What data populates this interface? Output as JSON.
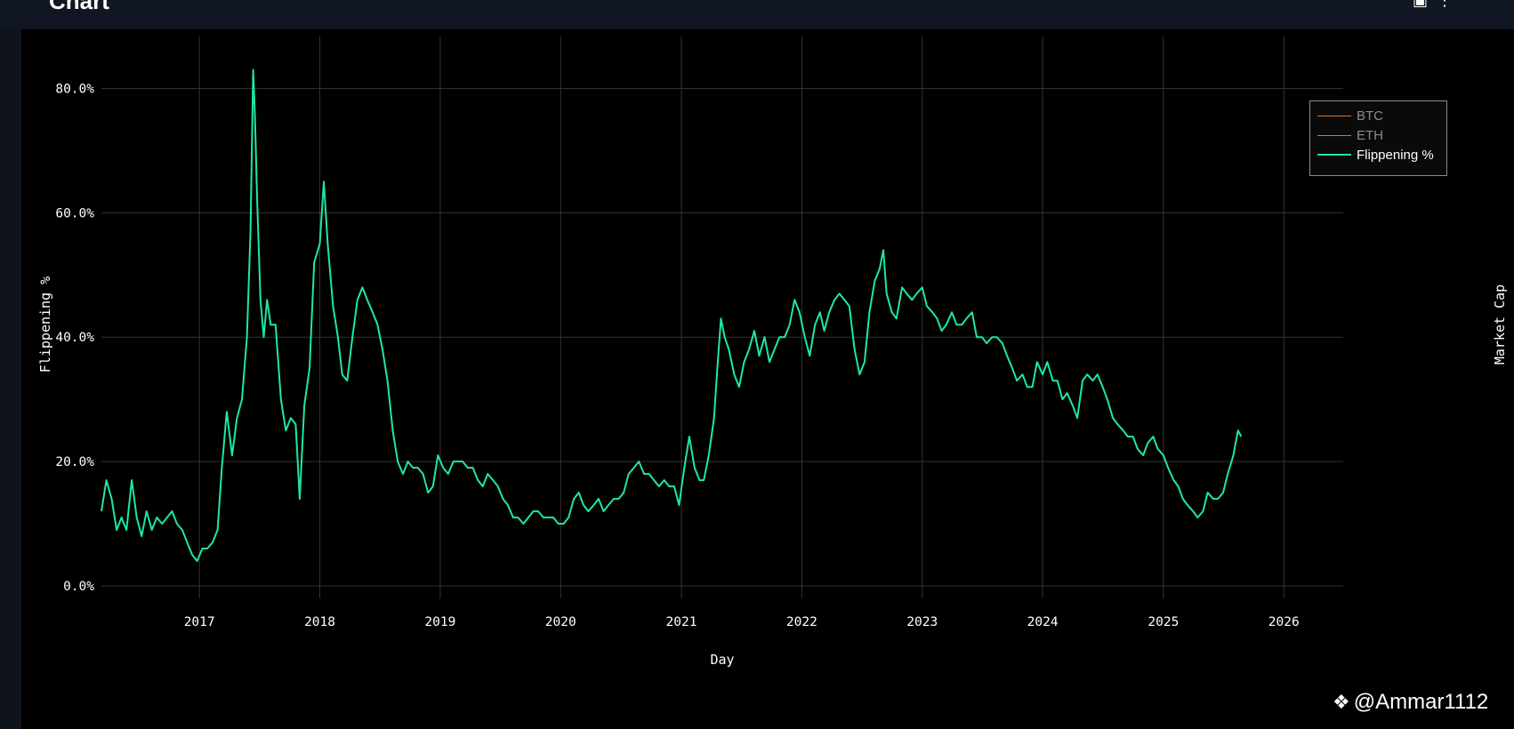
{
  "header": {
    "title": "Chart",
    "icons": [
      "camera-icon",
      "more-icon"
    ]
  },
  "watermark": {
    "text": "@Ammar1112",
    "icon": "binance-logo-icon"
  },
  "chart_data": {
    "type": "line",
    "title": "",
    "xlabel": "Day",
    "ylabel": "Flippening %",
    "y2label": "Market Cap",
    "xlim": [
      "2016-03-10",
      "2026-06-30"
    ],
    "ylim": [
      -0.02,
      0.875
    ],
    "grid": true,
    "legend_position": "top-right",
    "x_ticks": [
      "2017",
      "2018",
      "2019",
      "2020",
      "2021",
      "2022",
      "2023",
      "2024",
      "2025",
      "2026"
    ],
    "y_ticks": [
      {
        "value": 0.0,
        "label": "0.0%"
      },
      {
        "value": 0.2,
        "label": "20.0%"
      },
      {
        "value": 0.4,
        "label": "40.0%"
      },
      {
        "value": 0.6,
        "label": "60.0%"
      },
      {
        "value": 0.8,
        "label": "80.0%"
      }
    ],
    "series": [
      {
        "name": "BTC",
        "color": "#d9772b",
        "visible": false
      },
      {
        "name": "ETH",
        "color": "#8c8c8c",
        "visible": false
      },
      {
        "name": "Flippening %",
        "color": "#1de9a0",
        "visible": true,
        "points": [
          [
            "2016-03-10",
            0.12
          ],
          [
            "2016-03-25",
            0.17
          ],
          [
            "2016-04-10",
            0.14
          ],
          [
            "2016-04-25",
            0.09
          ],
          [
            "2016-05-10",
            0.11
          ],
          [
            "2016-05-25",
            0.09
          ],
          [
            "2016-06-10",
            0.17
          ],
          [
            "2016-06-25",
            0.11
          ],
          [
            "2016-07-10",
            0.08
          ],
          [
            "2016-07-25",
            0.12
          ],
          [
            "2016-08-10",
            0.09
          ],
          [
            "2016-08-25",
            0.11
          ],
          [
            "2016-09-10",
            0.1
          ],
          [
            "2016-09-25",
            0.11
          ],
          [
            "2016-10-10",
            0.12
          ],
          [
            "2016-10-25",
            0.1
          ],
          [
            "2016-11-10",
            0.09
          ],
          [
            "2016-11-25",
            0.07
          ],
          [
            "2016-12-10",
            0.05
          ],
          [
            "2016-12-25",
            0.04
          ],
          [
            "2017-01-10",
            0.06
          ],
          [
            "2017-01-25",
            0.06
          ],
          [
            "2017-02-10",
            0.07
          ],
          [
            "2017-02-25",
            0.09
          ],
          [
            "2017-03-10",
            0.19
          ],
          [
            "2017-03-25",
            0.28
          ],
          [
            "2017-04-10",
            0.21
          ],
          [
            "2017-04-25",
            0.27
          ],
          [
            "2017-05-10",
            0.3
          ],
          [
            "2017-05-25",
            0.4
          ],
          [
            "2017-06-05",
            0.57
          ],
          [
            "2017-06-13",
            0.83
          ],
          [
            "2017-06-18",
            0.76
          ],
          [
            "2017-06-25",
            0.62
          ],
          [
            "2017-07-05",
            0.46
          ],
          [
            "2017-07-15",
            0.4
          ],
          [
            "2017-07-25",
            0.46
          ],
          [
            "2017-08-05",
            0.42
          ],
          [
            "2017-08-20",
            0.42
          ],
          [
            "2017-09-05",
            0.3
          ],
          [
            "2017-09-20",
            0.25
          ],
          [
            "2017-10-05",
            0.27
          ],
          [
            "2017-10-20",
            0.26
          ],
          [
            "2017-11-01",
            0.14
          ],
          [
            "2017-11-15",
            0.29
          ],
          [
            "2017-12-01",
            0.35
          ],
          [
            "2017-12-15",
            0.52
          ],
          [
            "2018-01-01",
            0.55
          ],
          [
            "2018-01-13",
            0.65
          ],
          [
            "2018-01-25",
            0.55
          ],
          [
            "2018-02-10",
            0.45
          ],
          [
            "2018-02-25",
            0.4
          ],
          [
            "2018-03-10",
            0.34
          ],
          [
            "2018-03-25",
            0.33
          ],
          [
            "2018-04-10",
            0.4
          ],
          [
            "2018-04-25",
            0.46
          ],
          [
            "2018-05-10",
            0.48
          ],
          [
            "2018-05-25",
            0.46
          ],
          [
            "2018-06-10",
            0.44
          ],
          [
            "2018-06-25",
            0.42
          ],
          [
            "2018-07-10",
            0.38
          ],
          [
            "2018-07-25",
            0.33
          ],
          [
            "2018-08-10",
            0.25
          ],
          [
            "2018-08-25",
            0.2
          ],
          [
            "2018-09-10",
            0.18
          ],
          [
            "2018-09-25",
            0.2
          ],
          [
            "2018-10-10",
            0.19
          ],
          [
            "2018-10-25",
            0.19
          ],
          [
            "2018-11-10",
            0.18
          ],
          [
            "2018-11-25",
            0.15
          ],
          [
            "2018-12-10",
            0.16
          ],
          [
            "2018-12-25",
            0.21
          ],
          [
            "2019-01-10",
            0.19
          ],
          [
            "2019-01-25",
            0.18
          ],
          [
            "2019-02-10",
            0.2
          ],
          [
            "2019-02-25",
            0.2
          ],
          [
            "2019-03-10",
            0.2
          ],
          [
            "2019-03-25",
            0.19
          ],
          [
            "2019-04-10",
            0.19
          ],
          [
            "2019-04-25",
            0.17
          ],
          [
            "2019-05-10",
            0.16
          ],
          [
            "2019-05-25",
            0.18
          ],
          [
            "2019-06-10",
            0.17
          ],
          [
            "2019-06-25",
            0.16
          ],
          [
            "2019-07-10",
            0.14
          ],
          [
            "2019-07-25",
            0.13
          ],
          [
            "2019-08-10",
            0.11
          ],
          [
            "2019-08-25",
            0.11
          ],
          [
            "2019-09-10",
            0.1
          ],
          [
            "2019-09-25",
            0.11
          ],
          [
            "2019-10-10",
            0.12
          ],
          [
            "2019-10-25",
            0.12
          ],
          [
            "2019-11-10",
            0.11
          ],
          [
            "2019-11-25",
            0.11
          ],
          [
            "2019-12-10",
            0.11
          ],
          [
            "2019-12-25",
            0.1
          ],
          [
            "2020-01-10",
            0.1
          ],
          [
            "2020-01-25",
            0.11
          ],
          [
            "2020-02-10",
            0.14
          ],
          [
            "2020-02-25",
            0.15
          ],
          [
            "2020-03-10",
            0.13
          ],
          [
            "2020-03-25",
            0.12
          ],
          [
            "2020-04-10",
            0.13
          ],
          [
            "2020-04-25",
            0.14
          ],
          [
            "2020-05-10",
            0.12
          ],
          [
            "2020-05-25",
            0.13
          ],
          [
            "2020-06-10",
            0.14
          ],
          [
            "2020-06-25",
            0.14
          ],
          [
            "2020-07-10",
            0.15
          ],
          [
            "2020-07-25",
            0.18
          ],
          [
            "2020-08-10",
            0.19
          ],
          [
            "2020-08-25",
            0.2
          ],
          [
            "2020-09-10",
            0.18
          ],
          [
            "2020-09-25",
            0.18
          ],
          [
            "2020-10-10",
            0.17
          ],
          [
            "2020-10-25",
            0.16
          ],
          [
            "2020-11-10",
            0.17
          ],
          [
            "2020-11-25",
            0.16
          ],
          [
            "2020-12-10",
            0.16
          ],
          [
            "2020-12-25",
            0.13
          ],
          [
            "2021-01-10",
            0.19
          ],
          [
            "2021-01-25",
            0.24
          ],
          [
            "2021-02-10",
            0.19
          ],
          [
            "2021-02-25",
            0.17
          ],
          [
            "2021-03-10",
            0.17
          ],
          [
            "2021-03-25",
            0.21
          ],
          [
            "2021-04-10",
            0.27
          ],
          [
            "2021-04-20",
            0.35
          ],
          [
            "2021-05-01",
            0.43
          ],
          [
            "2021-05-12",
            0.4
          ],
          [
            "2021-05-25",
            0.38
          ],
          [
            "2021-06-10",
            0.34
          ],
          [
            "2021-06-25",
            0.32
          ],
          [
            "2021-07-10",
            0.36
          ],
          [
            "2021-07-25",
            0.38
          ],
          [
            "2021-08-10",
            0.41
          ],
          [
            "2021-08-25",
            0.37
          ],
          [
            "2021-09-10",
            0.4
          ],
          [
            "2021-09-25",
            0.36
          ],
          [
            "2021-10-10",
            0.38
          ],
          [
            "2021-10-25",
            0.4
          ],
          [
            "2021-11-10",
            0.4
          ],
          [
            "2021-11-25",
            0.42
          ],
          [
            "2021-12-10",
            0.46
          ],
          [
            "2021-12-25",
            0.44
          ],
          [
            "2022-01-10",
            0.4
          ],
          [
            "2022-01-25",
            0.37
          ],
          [
            "2022-02-10",
            0.42
          ],
          [
            "2022-02-25",
            0.44
          ],
          [
            "2022-03-10",
            0.41
          ],
          [
            "2022-03-25",
            0.44
          ],
          [
            "2022-04-10",
            0.46
          ],
          [
            "2022-04-25",
            0.47
          ],
          [
            "2022-05-10",
            0.46
          ],
          [
            "2022-05-25",
            0.45
          ],
          [
            "2022-06-10",
            0.38
          ],
          [
            "2022-06-25",
            0.34
          ],
          [
            "2022-07-10",
            0.36
          ],
          [
            "2022-07-25",
            0.44
          ],
          [
            "2022-08-10",
            0.49
          ],
          [
            "2022-08-25",
            0.51
          ],
          [
            "2022-09-05",
            0.54
          ],
          [
            "2022-09-15",
            0.47
          ],
          [
            "2022-10-01",
            0.44
          ],
          [
            "2022-10-15",
            0.43
          ],
          [
            "2022-11-01",
            0.48
          ],
          [
            "2022-11-15",
            0.47
          ],
          [
            "2022-12-01",
            0.46
          ],
          [
            "2022-12-15",
            0.47
          ],
          [
            "2023-01-01",
            0.48
          ],
          [
            "2023-01-15",
            0.45
          ],
          [
            "2023-02-01",
            0.44
          ],
          [
            "2023-02-15",
            0.43
          ],
          [
            "2023-03-01",
            0.41
          ],
          [
            "2023-03-15",
            0.42
          ],
          [
            "2023-04-01",
            0.44
          ],
          [
            "2023-04-15",
            0.42
          ],
          [
            "2023-05-01",
            0.42
          ],
          [
            "2023-05-15",
            0.43
          ],
          [
            "2023-06-01",
            0.44
          ],
          [
            "2023-06-15",
            0.4
          ],
          [
            "2023-07-01",
            0.4
          ],
          [
            "2023-07-15",
            0.39
          ],
          [
            "2023-08-01",
            0.4
          ],
          [
            "2023-08-15",
            0.4
          ],
          [
            "2023-09-01",
            0.39
          ],
          [
            "2023-09-15",
            0.37
          ],
          [
            "2023-10-01",
            0.35
          ],
          [
            "2023-10-15",
            0.33
          ],
          [
            "2023-11-01",
            0.34
          ],
          [
            "2023-11-15",
            0.32
          ],
          [
            "2023-12-01",
            0.32
          ],
          [
            "2023-12-15",
            0.36
          ],
          [
            "2024-01-01",
            0.34
          ],
          [
            "2024-01-15",
            0.36
          ],
          [
            "2024-02-01",
            0.33
          ],
          [
            "2024-02-15",
            0.33
          ],
          [
            "2024-03-01",
            0.3
          ],
          [
            "2024-03-15",
            0.31
          ],
          [
            "2024-04-01",
            0.29
          ],
          [
            "2024-04-15",
            0.27
          ],
          [
            "2024-05-01",
            0.33
          ],
          [
            "2024-05-15",
            0.34
          ],
          [
            "2024-06-01",
            0.33
          ],
          [
            "2024-06-15",
            0.34
          ],
          [
            "2024-07-01",
            0.32
          ],
          [
            "2024-07-15",
            0.3
          ],
          [
            "2024-08-01",
            0.27
          ],
          [
            "2024-08-15",
            0.26
          ],
          [
            "2024-09-01",
            0.25
          ],
          [
            "2024-09-15",
            0.24
          ],
          [
            "2024-10-01",
            0.24
          ],
          [
            "2024-10-15",
            0.22
          ],
          [
            "2024-11-01",
            0.21
          ],
          [
            "2024-11-15",
            0.23
          ],
          [
            "2024-12-01",
            0.24
          ],
          [
            "2024-12-15",
            0.22
          ],
          [
            "2025-01-01",
            0.21
          ],
          [
            "2025-01-15",
            0.19
          ],
          [
            "2025-02-01",
            0.17
          ],
          [
            "2025-02-15",
            0.16
          ],
          [
            "2025-03-01",
            0.14
          ],
          [
            "2025-03-15",
            0.13
          ],
          [
            "2025-04-01",
            0.12
          ],
          [
            "2025-04-15",
            0.11
          ],
          [
            "2025-05-01",
            0.12
          ],
          [
            "2025-05-15",
            0.15
          ],
          [
            "2025-06-01",
            0.14
          ],
          [
            "2025-06-15",
            0.14
          ],
          [
            "2025-07-01",
            0.15
          ],
          [
            "2025-07-15",
            0.18
          ],
          [
            "2025-08-01",
            0.21
          ],
          [
            "2025-08-15",
            0.25
          ],
          [
            "2025-08-25",
            0.24
          ]
        ]
      }
    ]
  }
}
